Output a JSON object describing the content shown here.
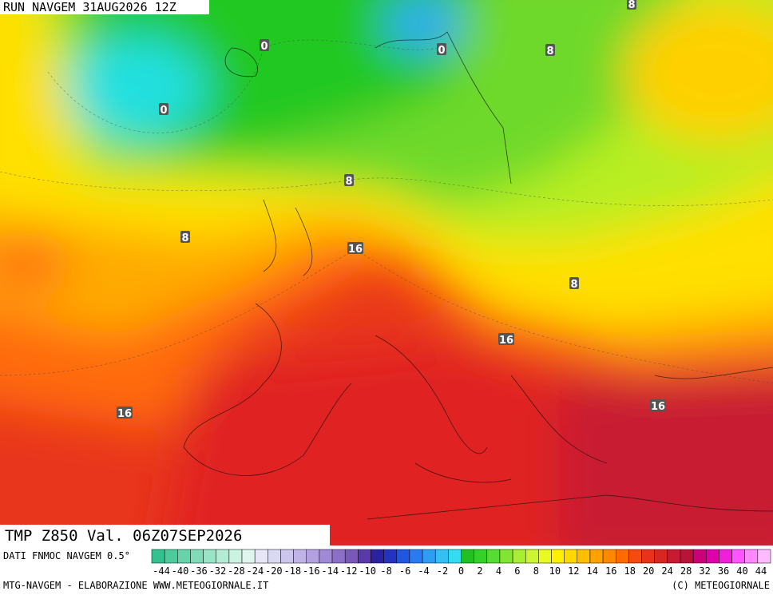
{
  "header": {
    "title": "RUN NAVGEM 31AUG2026 12Z"
  },
  "map": {
    "title": "TMP Z850 Val. 06Z07SEP2026",
    "contour_labels": [
      0,
      0,
      0,
      8,
      8,
      8,
      8,
      8,
      16,
      16,
      16,
      16
    ]
  },
  "legend": {
    "source": "DATI FNMOC NAVGEM 0.5°",
    "colors": [
      "#33c28f",
      "#4ccb9c",
      "#66d3aa",
      "#80dbb8",
      "#99e3c6",
      "#b3ebd4",
      "#ccf2e2",
      "#e0f5ee",
      "#e6e6f7",
      "#d9d9f2",
      "#ccc6ee",
      "#bfb3e8",
      "#b3a0e0",
      "#a08ad6",
      "#8c70c8",
      "#7a58b8",
      "#5a3aa8",
      "#2a22a0",
      "#2233c0",
      "#2255e0",
      "#2a7af0",
      "#2f9ef2",
      "#33c0f2",
      "#33dcf0",
      "#22c020",
      "#33d12a",
      "#55dd33",
      "#80e633",
      "#a8ee33",
      "#ccf533",
      "#e8fa22",
      "#fff000",
      "#ffd800",
      "#ffbe00",
      "#ffa200",
      "#ff8800",
      "#ff6a00",
      "#f54a10",
      "#e8321a",
      "#d82622",
      "#c81a30",
      "#b8143a",
      "#cc0077",
      "#e000a8",
      "#f020d8",
      "#ff55ff",
      "#ff88ff",
      "#ffbbff"
    ],
    "labels": [
      -44,
      -40,
      -36,
      -32,
      -28,
      -24,
      -20,
      -18,
      -16,
      -14,
      -12,
      -10,
      -8,
      -6,
      -4,
      -2,
      0,
      2,
      4,
      6,
      8,
      10,
      12,
      14,
      16,
      18,
      20,
      24,
      28,
      32,
      36,
      40,
      44
    ]
  },
  "footer": {
    "credit": "MTG-NAVGEM - ELABORAZIONE WWW.METEOGIORNALE.IT",
    "copyright": "(C) METEOGIORNALE"
  }
}
